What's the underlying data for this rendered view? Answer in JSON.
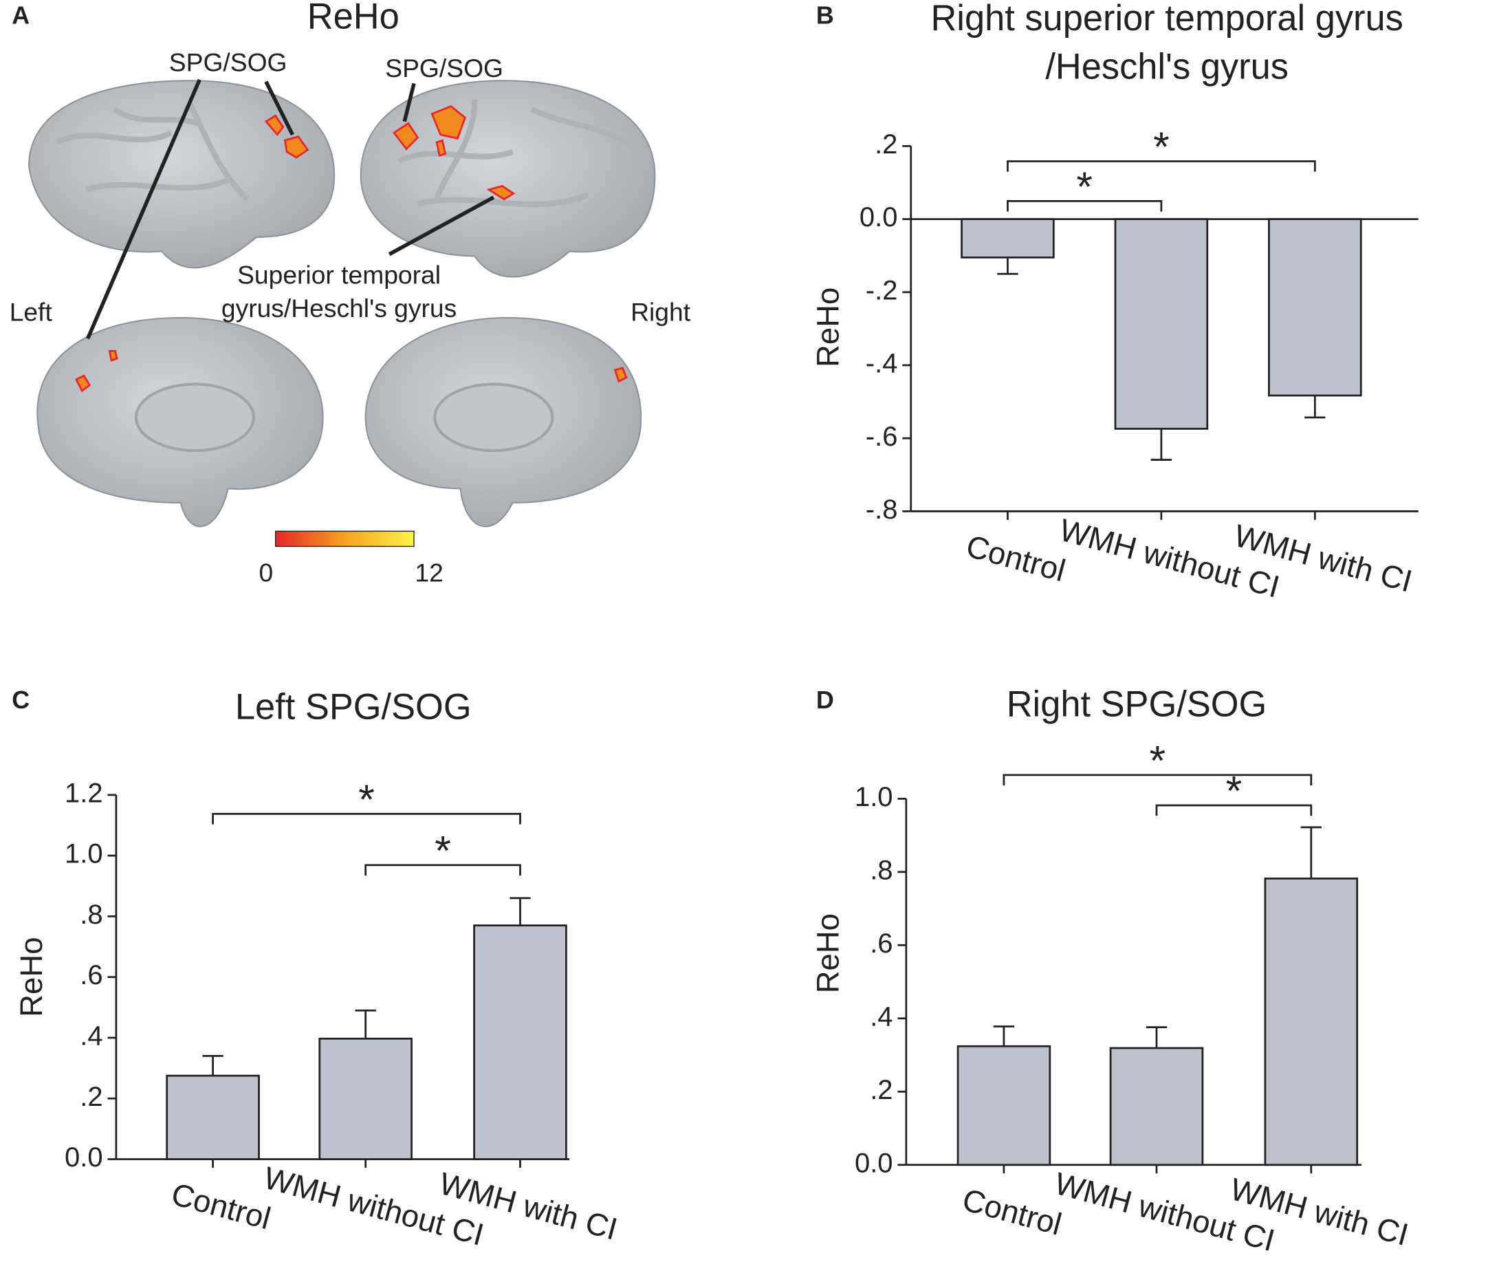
{
  "brain_panel": {
    "panel_label": "A",
    "title": "ReHo",
    "left_region_label": "SPG/SOG",
    "right_region_label": "SPG/SOG",
    "temporal_label": [
      "Superior temporal",
      "gyrus/Heschl's gyrus"
    ],
    "side_labels": [
      "Left",
      "Right"
    ],
    "colorbar": {
      "min": 0,
      "max": 12,
      "colors": [
        "#e8262a",
        "#f6a21f",
        "#fdf44a"
      ]
    }
  },
  "chart_data": [
    {
      "type": "bar",
      "panel_label": "B",
      "title": [
        "Right superior temporal gyrus",
        "/Heschl's gyrus"
      ],
      "ylabel": "ReHo",
      "categories": [
        "Control",
        "WMH without CI",
        "WMH with CI"
      ],
      "values": [
        -0.105,
        -0.574,
        -0.483
      ],
      "errors": [
        0.045,
        0.085,
        0.06
      ],
      "color": "#bec3cb",
      "ylim": [
        -0.8,
        0.2
      ],
      "yticks": [
        {
          "value": 0.2,
          "label": ".2"
        },
        {
          "value": 0,
          "label": "0.0"
        },
        {
          "value": -0.2,
          "label": "-.2"
        },
        {
          "value": -0.4,
          "label": "-.4"
        },
        {
          "value": -0.6,
          "label": "-.6"
        },
        {
          "value": -0.8,
          "label": "-.8"
        }
      ],
      "significance": [
        {
          "between": [
            "Control",
            "WMH without CI"
          ],
          "label": "*"
        },
        {
          "between": [
            "Control",
            "WMH with CI"
          ],
          "label": "*"
        }
      ]
    },
    {
      "type": "bar",
      "panel_label": "C",
      "title": [
        "Left SPG/SOG"
      ],
      "ylabel": "ReHo",
      "categories": [
        "Control",
        "WMH without CI",
        "WMH with CI"
      ],
      "values": [
        0.275,
        0.397,
        0.77
      ],
      "errors": [
        0.065,
        0.093,
        0.09
      ],
      "color": "#bec3cb",
      "ylim": [
        0,
        1.2
      ],
      "yticks": [
        {
          "value": 0,
          "label": "0.0"
        },
        {
          "value": 0.2,
          "label": ".2"
        },
        {
          "value": 0.4,
          "label": ".4"
        },
        {
          "value": 0.6,
          "label": ".6"
        },
        {
          "value": 0.8,
          "label": ".8"
        },
        {
          "value": 1,
          "label": "1.0"
        },
        1.2
      ],
      "significance": [
        {
          "between": [
            "WMH without CI",
            "WMH with CI"
          ],
          "label": "*"
        },
        {
          "between": [
            "Control",
            "WMH with CI"
          ],
          "label": "*"
        }
      ]
    },
    {
      "type": "bar",
      "panel_label": "D",
      "title": [
        "Right SPG/SOG"
      ],
      "ylabel": "ReHo",
      "categories": [
        "Control",
        "WMH without CI",
        "WMH with CI"
      ],
      "values": [
        0.324,
        0.319,
        0.782
      ],
      "errors": [
        0.054,
        0.057,
        0.14
      ],
      "color": "#bec3cb",
      "ylim": [
        0,
        1
      ],
      "yticks": [
        {
          "value": 0,
          "label": "0.0"
        },
        {
          "value": 0.2,
          "label": ".2"
        },
        {
          "value": 0.4,
          "label": ".4"
        },
        {
          "value": 0.6,
          "label": ".6"
        },
        {
          "value": 0.8,
          "label": ".8"
        },
        {
          "value": 1,
          "label": "1.0"
        }
      ],
      "significance": [
        {
          "between": [
            "WMH without CI",
            "WMH with CI"
          ],
          "label": "*"
        },
        {
          "between": [
            "Control",
            "WMH with CI"
          ],
          "label": "*"
        }
      ]
    }
  ]
}
